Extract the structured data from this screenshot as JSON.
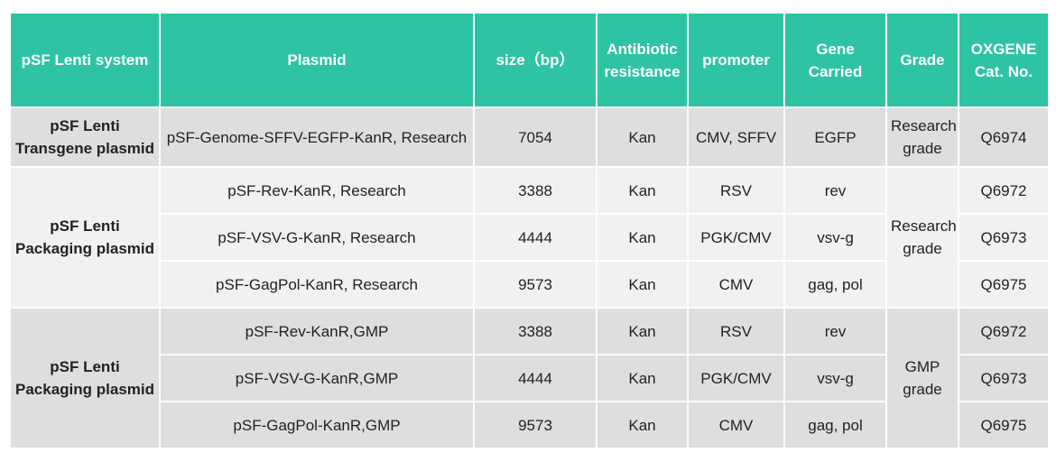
{
  "table": {
    "headers": {
      "system": "pSF Lenti system",
      "plasmid": "Plasmid",
      "size": "size（bp）",
      "antibiotic_line1": "Antibiotic",
      "antibiotic_line2": "resistance",
      "promoter": "promoter",
      "gene_line1": "Gene",
      "gene_line2": "Carried",
      "grade": "Grade",
      "cat_line1": "OXGENE",
      "cat_line2": "Cat. No."
    },
    "groups": [
      {
        "system_line1": "pSF Lenti",
        "system_line2": "Transgene plasmid",
        "grade_line1": "Research",
        "grade_line2": "grade",
        "rows": [
          {
            "plasmid": "pSF-Genome-SFFV-EGFP-KanR, Research",
            "size": "7054",
            "antibiotic": "Kan",
            "promoter": "CMV, SFFV",
            "gene": "EGFP",
            "cat": "Q6974"
          }
        ]
      },
      {
        "system_line1": "pSF Lenti",
        "system_line2": "Packaging plasmid",
        "grade_line1": "Research",
        "grade_line2": "grade",
        "rows": [
          {
            "plasmid": "pSF-Rev-KanR, Research",
            "size": "3388",
            "antibiotic": "Kan",
            "promoter": "RSV",
            "gene": "rev",
            "cat": "Q6972"
          },
          {
            "plasmid": "pSF-VSV-G-KanR, Research",
            "size": "4444",
            "antibiotic": "Kan",
            "promoter": "PGK/CMV",
            "gene": "vsv-g",
            "cat": "Q6973"
          },
          {
            "plasmid": "pSF-GagPol-KanR, Research",
            "size": "9573",
            "antibiotic": "Kan",
            "promoter": "CMV",
            "gene": "gag, pol",
            "cat": "Q6975"
          }
        ]
      },
      {
        "system_line1": "pSF Lenti",
        "system_line2": "Packaging plasmid",
        "grade_line1": "GMP",
        "grade_line2": "grade",
        "rows": [
          {
            "plasmid": "pSF-Rev-KanR,GMP",
            "size": "3388",
            "antibiotic": "Kan",
            "promoter": "RSV",
            "gene": "rev",
            "cat": "Q6972"
          },
          {
            "plasmid": "pSF-VSV-G-KanR,GMP",
            "size": "4444",
            "antibiotic": "Kan",
            "promoter": "PGK/CMV",
            "gene": "vsv-g",
            "cat": "Q6973"
          },
          {
            "plasmid": "pSF-GagPol-KanR,GMP",
            "size": "9573",
            "antibiotic": "Kan",
            "promoter": "CMV",
            "gene": "gag, pol",
            "cat": "Q6975"
          }
        ]
      }
    ]
  }
}
